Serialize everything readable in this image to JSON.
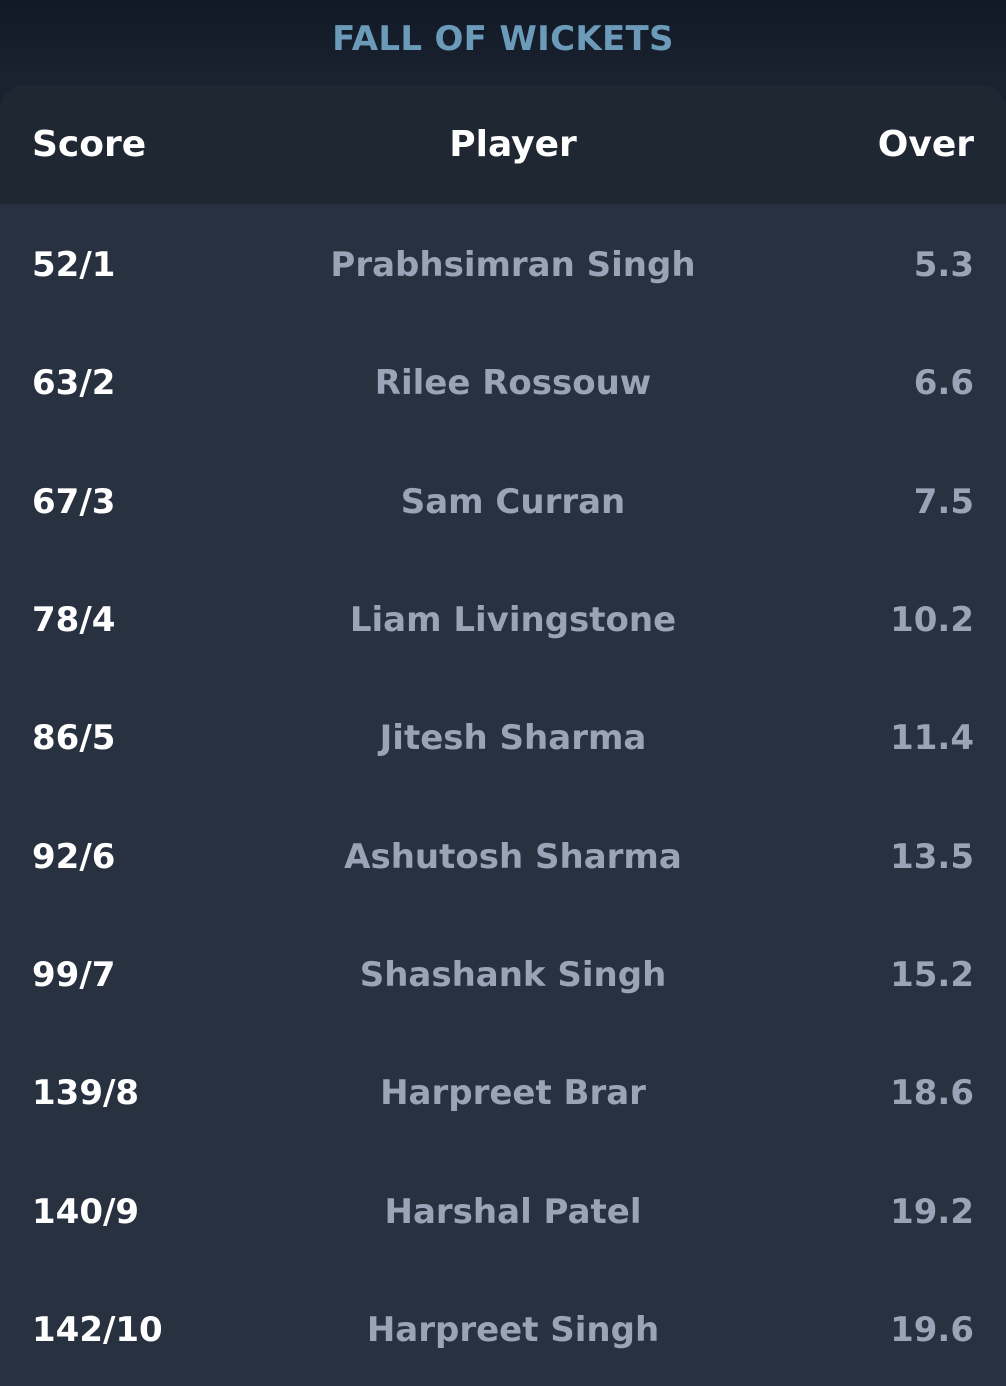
{
  "title": "FALL OF WICKETS",
  "columns": {
    "score": "Score",
    "player": "Player",
    "over": "Over"
  },
  "rows": [
    {
      "score": "52/1",
      "player": "Prabhsimran Singh",
      "over": "5.3"
    },
    {
      "score": "63/2",
      "player": "Rilee Rossouw",
      "over": "6.6"
    },
    {
      "score": "67/3",
      "player": "Sam Curran",
      "over": "7.5"
    },
    {
      "score": "78/4",
      "player": "Liam Livingstone",
      "over": "10.2"
    },
    {
      "score": "86/5",
      "player": "Jitesh Sharma",
      "over": "11.4"
    },
    {
      "score": "92/6",
      "player": "Ashutosh Sharma",
      "over": "13.5"
    },
    {
      "score": "99/7",
      "player": "Shashank Singh",
      "over": "15.2"
    },
    {
      "score": "139/8",
      "player": "Harpreet Brar",
      "over": "18.6"
    },
    {
      "score": "140/9",
      "player": "Harshal Patel",
      "over": "19.2"
    },
    {
      "score": "142/10",
      "player": "Harpreet Singh",
      "over": "19.6"
    }
  ],
  "colors": {
    "title": "#6b9bb8",
    "header_bg": "#1f2733",
    "card_bg": "#283140",
    "muted_text": "#9aa4b6"
  }
}
